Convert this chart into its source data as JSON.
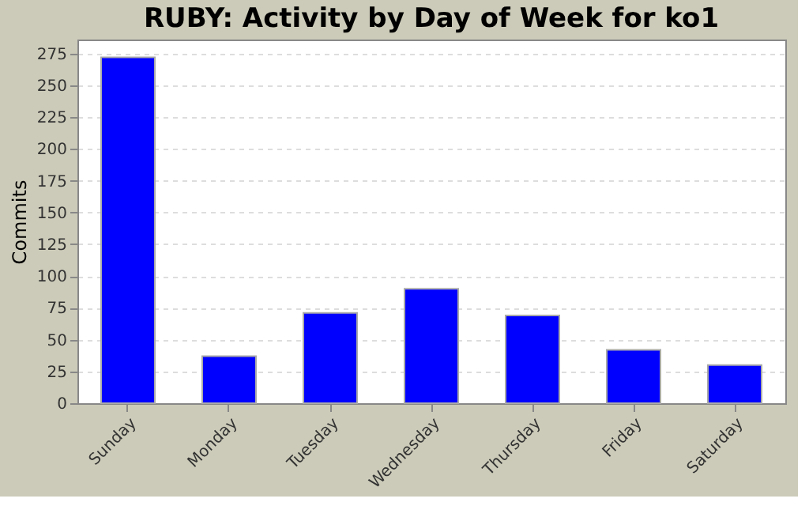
{
  "chart_data": {
    "type": "bar",
    "title": "RUBY: Activity by Day of Week for ko1",
    "ylabel": "Commits",
    "categories": [
      "Sunday",
      "Monday",
      "Tuesday",
      "Wednesday",
      "Thursday",
      "Friday",
      "Saturday"
    ],
    "values": [
      272,
      37,
      71,
      90,
      69,
      42,
      30
    ],
    "color": "#0000ff",
    "ylim": [
      0,
      286
    ],
    "yticks": [
      0,
      25,
      50,
      75,
      100,
      125,
      150,
      175,
      200,
      225,
      250,
      275
    ],
    "grid": "y"
  }
}
